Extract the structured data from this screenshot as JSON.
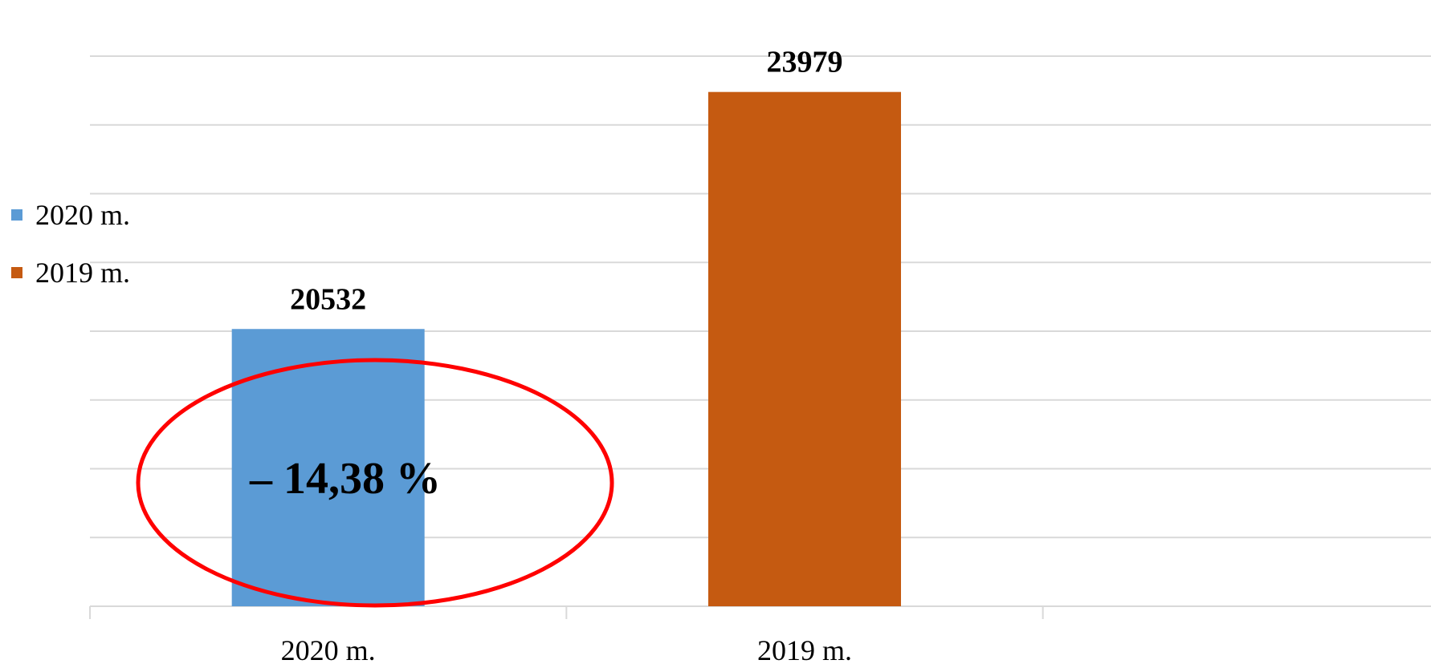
{
  "chart_data": {
    "type": "bar",
    "categories": [
      "2020 m.",
      "2019 m.",
      ""
    ],
    "series": [
      {
        "name": "2020 m.",
        "color": "#5B9BD5",
        "values": [
          20532,
          null,
          null
        ]
      },
      {
        "name": "2019 m.",
        "color": "#C55A11",
        "values": [
          null,
          23979,
          null
        ]
      }
    ],
    "data_labels": [
      "20532",
      "23979"
    ],
    "ylim": [
      16500,
      24500
    ],
    "grid": true,
    "legend_position": "left",
    "annotation": {
      "text": "– 14,38 %",
      "shape": "ellipse",
      "color": "#FF0000"
    }
  }
}
